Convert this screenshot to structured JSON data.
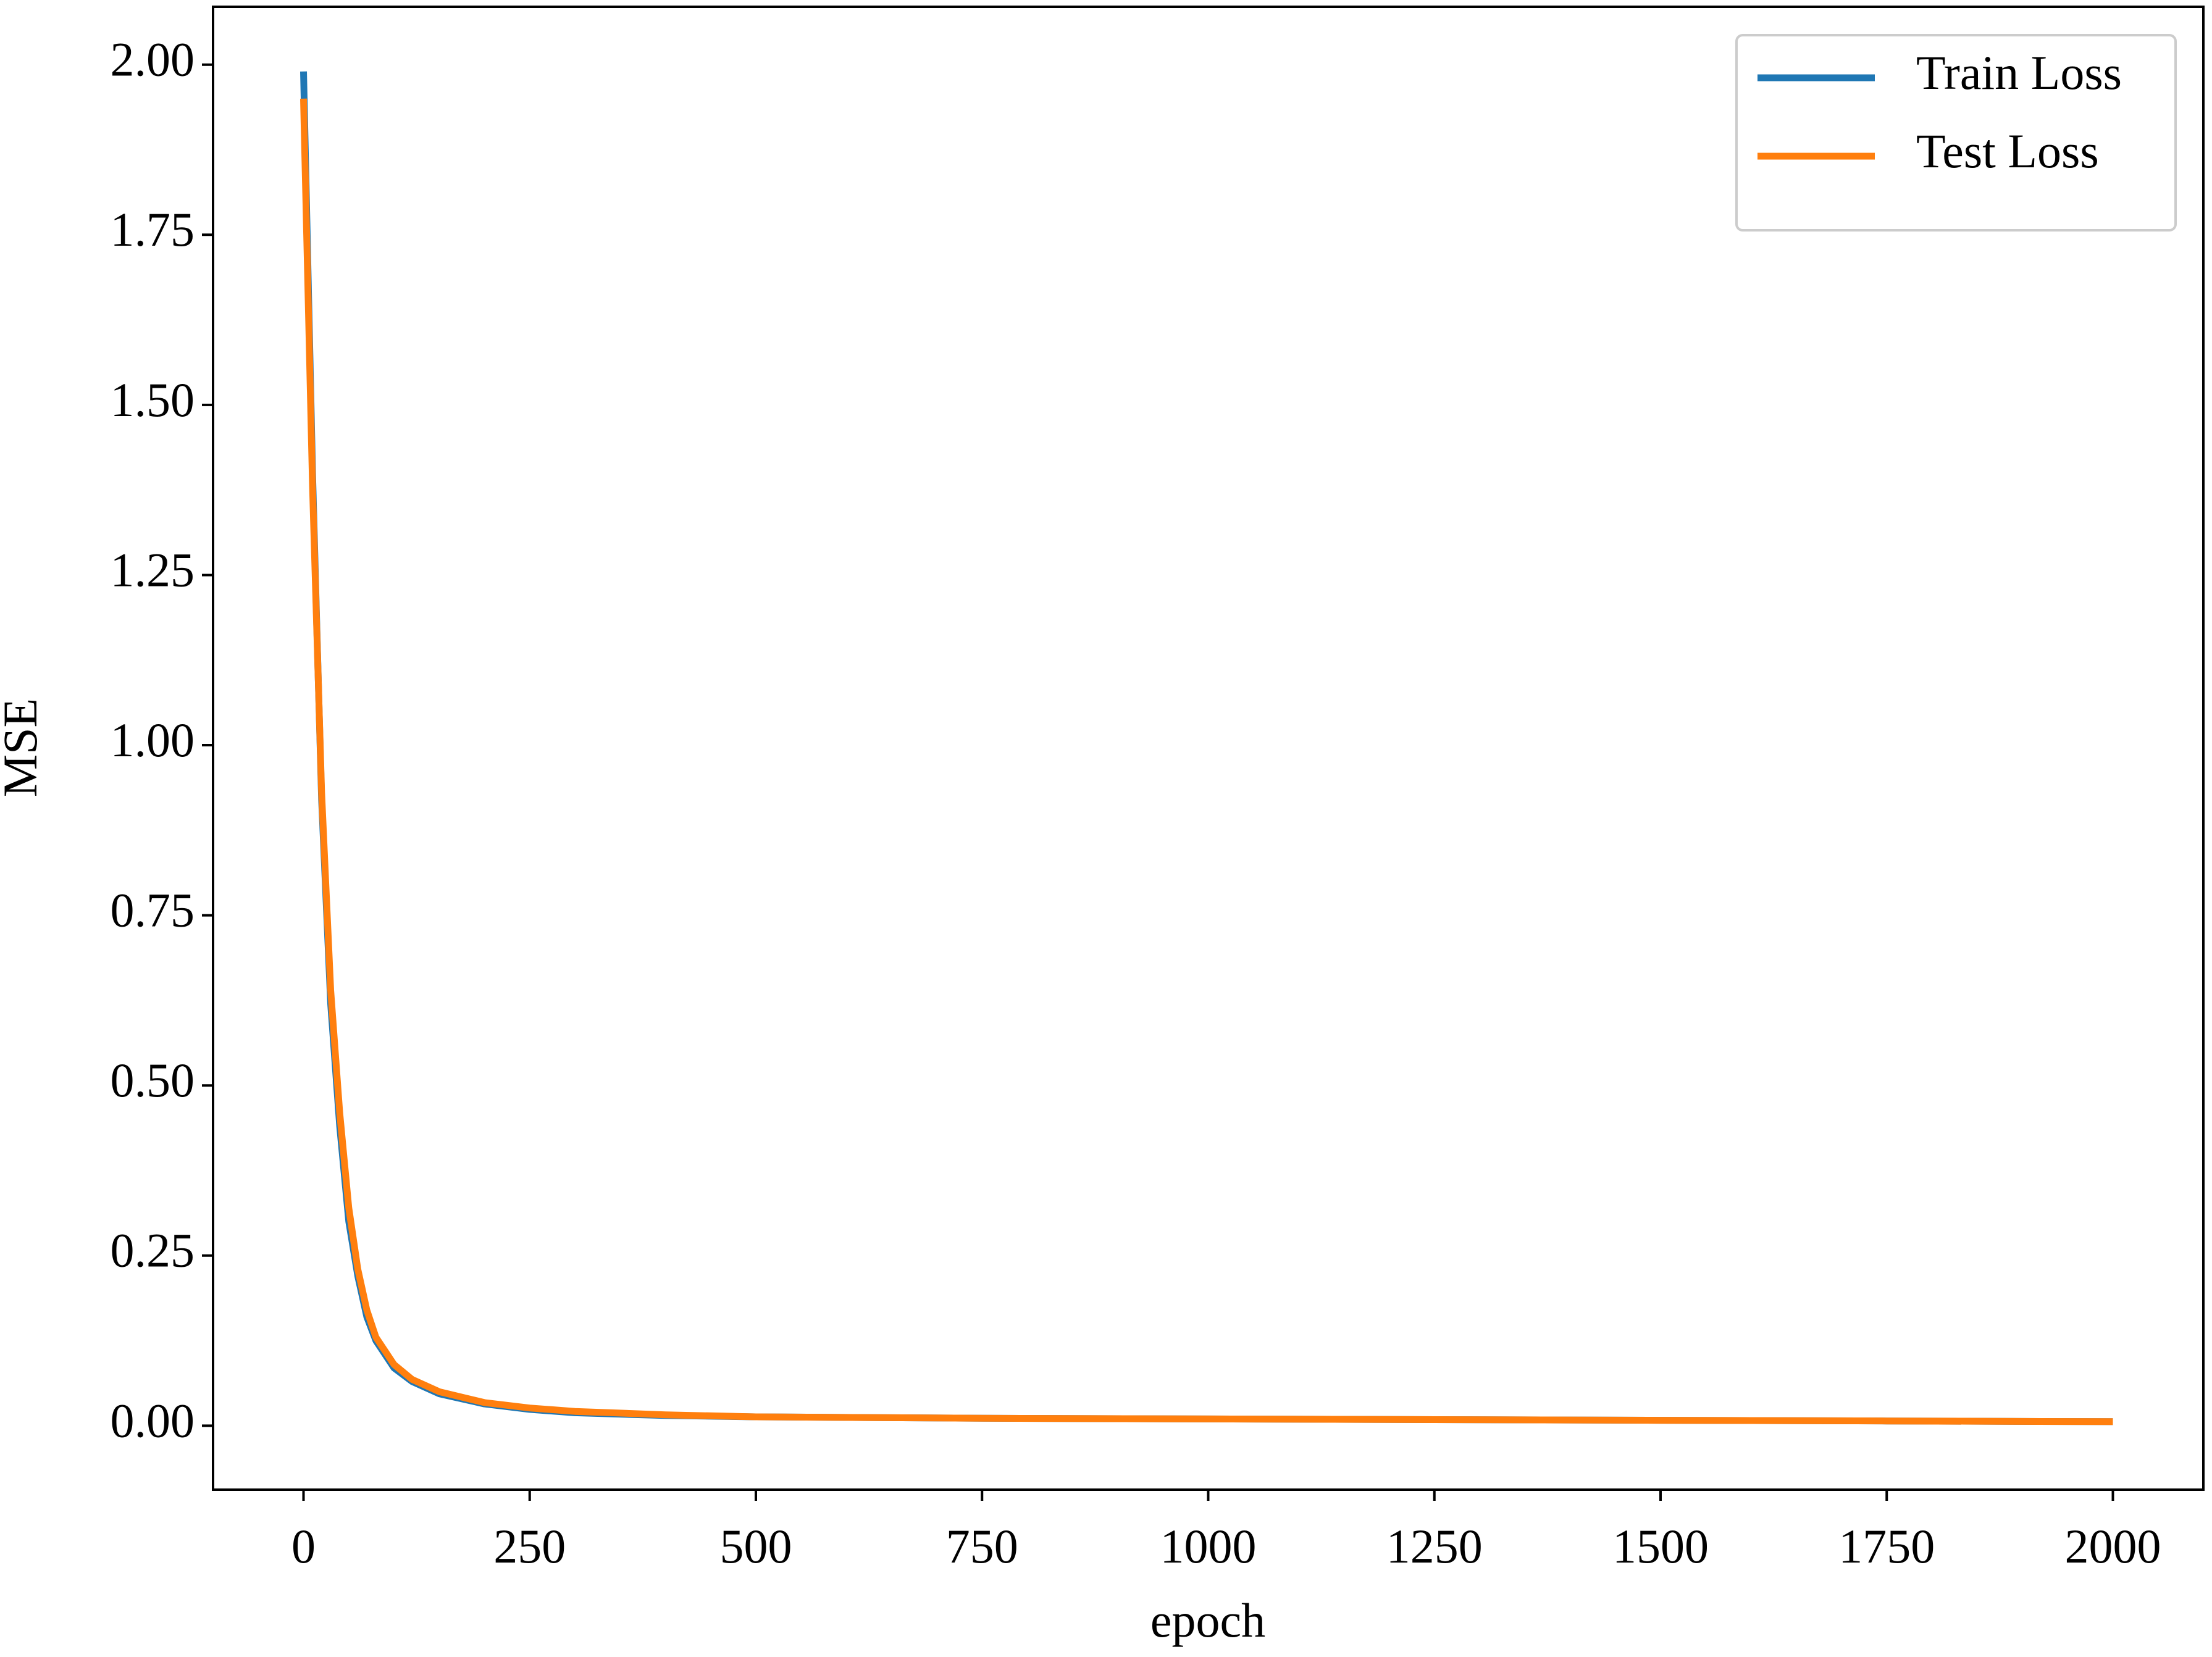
{
  "chart_data": {
    "type": "line",
    "x_label": "epoch",
    "y_label": "MSE",
    "x": [
      0,
      10,
      20,
      30,
      40,
      50,
      60,
      70,
      80,
      100,
      120,
      150,
      200,
      250,
      300,
      400,
      500,
      750,
      1000,
      1250,
      1500,
      1750,
      2000
    ],
    "series": [
      {
        "name": "Train Loss",
        "color": "#1f77b4",
        "values": [
          1.99,
          1.4,
          0.92,
          0.62,
          0.44,
          0.3,
          0.22,
          0.16,
          0.125,
          0.085,
          0.065,
          0.047,
          0.032,
          0.024,
          0.019,
          0.015,
          0.013,
          0.011,
          0.01,
          0.009,
          0.008,
          0.007,
          0.006
        ]
      },
      {
        "name": "Test Loss",
        "color": "#ff7f0e",
        "values": [
          1.95,
          1.38,
          0.93,
          0.64,
          0.46,
          0.32,
          0.23,
          0.17,
          0.13,
          0.09,
          0.068,
          0.05,
          0.034,
          0.026,
          0.021,
          0.016,
          0.013,
          0.011,
          0.01,
          0.009,
          0.008,
          0.007,
          0.006
        ]
      }
    ],
    "xlim": [
      -100,
      2100
    ],
    "ylim": [
      -0.094,
      2.085
    ],
    "xticks": [
      0,
      250,
      500,
      750,
      1000,
      1250,
      1500,
      1750,
      2000
    ],
    "yticks": [
      {
        "value": 0,
        "label": "0.00"
      },
      {
        "value": 0.25,
        "label": "0.25"
      },
      {
        "value": 0.5,
        "label": "0.50"
      },
      {
        "value": 0.75,
        "label": "0.75"
      },
      {
        "value": 1,
        "label": "1.00"
      },
      {
        "value": 1.25,
        "label": "1.25"
      },
      {
        "value": 1.5,
        "label": "1.50"
      },
      {
        "value": 1.75,
        "label": "1.75"
      },
      {
        "value": 2,
        "label": "2.00"
      }
    ],
    "legend": "upper right",
    "grid": false
  }
}
